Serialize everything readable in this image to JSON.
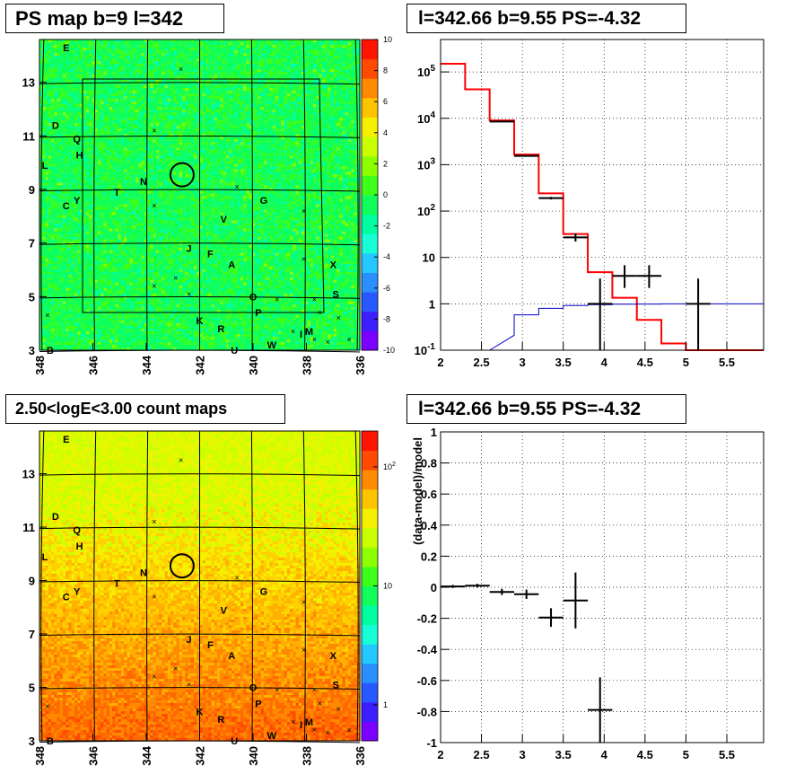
{
  "panels": {
    "top_left_title": "PS map b=9 l=342",
    "top_right_title": "l=342.66 b=9.55 PS=-4.32",
    "bottom_left_title": "2.50<logE<3.00 count maps",
    "bottom_right_title": "l=342.66 b=9.55 PS=-4.32"
  },
  "chart_data": [
    {
      "type": "heatmap",
      "panel": "top_left",
      "title": "PS map b=9 l=342",
      "x_ticks": [
        "348",
        "346",
        "344",
        "342",
        "340",
        "338",
        "336"
      ],
      "x_range": [
        348,
        336
      ],
      "y_ticks": [
        "3",
        "5",
        "7",
        "9",
        "11",
        "13"
      ],
      "y_range": [
        3,
        14.6
      ],
      "colorbar": {
        "ticks": [
          "10",
          "8",
          "6",
          "4",
          "2",
          "0",
          "-2",
          "-4",
          "-6",
          "-8",
          "-10"
        ],
        "range": [
          -10,
          10
        ],
        "colors": [
          "#7a00ff",
          "#3c1eff",
          "#2858ff",
          "#2a8fff",
          "#22c8ff",
          "#18ffd8",
          "#00ffa0",
          "#11ff5a",
          "#3eff19",
          "#8cff00",
          "#c9ff00",
          "#f4f000",
          "#ffc400",
          "#ff8a00",
          "#ff4a00",
          "#ff1400"
        ]
      },
      "dominant_value": 0.5,
      "sources": [
        {
          "label": "E",
          "l": 347.0,
          "b": 14.3
        },
        {
          "label": "D",
          "l": 347.4,
          "b": 11.4
        },
        {
          "label": "Q",
          "l": 346.6,
          "b": 10.9
        },
        {
          "label": "H",
          "l": 346.5,
          "b": 10.3
        },
        {
          "label": "L",
          "l": 347.8,
          "b": 9.9
        },
        {
          "label": "N",
          "l": 344.1,
          "b": 9.3
        },
        {
          "label": "T",
          "l": 345.1,
          "b": 8.9
        },
        {
          "label": "Y",
          "l": 346.6,
          "b": 8.6
        },
        {
          "label": "C",
          "l": 347.0,
          "b": 8.4
        },
        {
          "label": "G",
          "l": 339.6,
          "b": 8.6
        },
        {
          "label": "V",
          "l": 341.1,
          "b": 7.9
        },
        {
          "label": "J",
          "l": 342.4,
          "b": 6.8
        },
        {
          "label": "F",
          "l": 341.6,
          "b": 6.6
        },
        {
          "label": "A",
          "l": 340.8,
          "b": 6.2
        },
        {
          "label": "X",
          "l": 337.0,
          "b": 6.2
        },
        {
          "label": "O",
          "l": 340.0,
          "b": 5.0
        },
        {
          "label": "S",
          "l": 336.9,
          "b": 5.1
        },
        {
          "label": "P",
          "l": 339.8,
          "b": 4.4
        },
        {
          "label": "K",
          "l": 342.0,
          "b": 4.1
        },
        {
          "label": "R",
          "l": 341.2,
          "b": 3.8
        },
        {
          "label": "M",
          "l": 337.9,
          "b": 3.7
        },
        {
          "label": "I",
          "l": 338.2,
          "b": 3.6
        },
        {
          "label": "W",
          "l": 339.3,
          "b": 3.2
        },
        {
          "label": "U",
          "l": 340.7,
          "b": 3.0
        },
        {
          "label": "B",
          "l": 347.6,
          "b": 3.0
        }
      ],
      "crosses": [
        [
          342.7,
          13.5
        ],
        [
          343.7,
          11.2
        ],
        [
          340.6,
          9.1
        ],
        [
          343.7,
          8.4
        ],
        [
          338.1,
          8.2
        ],
        [
          338.1,
          6.4
        ],
        [
          342.9,
          5.7
        ],
        [
          343.7,
          5.4
        ],
        [
          342.4,
          5.1
        ],
        [
          339.1,
          4.9
        ],
        [
          337.7,
          4.9
        ],
        [
          337.5,
          4.4
        ],
        [
          336.8,
          4.2
        ],
        [
          338.5,
          3.7
        ],
        [
          337.7,
          3.4
        ],
        [
          337.2,
          3.3
        ],
        [
          336.4,
          3.4
        ],
        [
          347.7,
          4.3
        ]
      ],
      "circle": {
        "l": 342.66,
        "b": 9.55
      }
    },
    {
      "type": "line",
      "panel": "top_right",
      "title": "l=342.66 b=9.55 PS=-4.32",
      "x_ticks": [
        "2",
        "2.5",
        "3",
        "3.5",
        "4",
        "4.5",
        "5",
        "5.5"
      ],
      "xlim": [
        2.0,
        5.95
      ],
      "y_scale": "log",
      "y_ticks": [
        {
          "value": 0.1,
          "base": "10",
          "exp": "-1"
        },
        {
          "value": 1,
          "base": "1",
          "exp": ""
        },
        {
          "value": 10,
          "base": "10",
          "exp": ""
        },
        {
          "value": 100,
          "base": "10",
          "exp": "2"
        },
        {
          "value": 1000,
          "base": "10",
          "exp": "3"
        },
        {
          "value": 10000,
          "base": "10",
          "exp": "4"
        },
        {
          "value": 100000,
          "base": "10",
          "exp": "5"
        }
      ],
      "ylim": [
        0.1,
        500000
      ],
      "grid": true,
      "series": [
        {
          "color": "#ff0000",
          "kind": "step",
          "edges": [
            2.0,
            2.3,
            2.6,
            2.9,
            3.2,
            3.5,
            3.8,
            4.1,
            4.4,
            4.7,
            5.0,
            5.3,
            5.6,
            5.95
          ],
          "values": [
            150000,
            42000,
            9000,
            1650,
            240,
            32,
            4.8,
            1.35,
            0.45,
            0.14,
            0.1,
            0.1,
            0.1
          ]
        },
        {
          "color": "#0000cc",
          "kind": "step",
          "edges": [
            2.6,
            2.9,
            3.2,
            3.5,
            3.8,
            4.1,
            4.4,
            4.7,
            5.0,
            5.3,
            5.6,
            5.95
          ],
          "values": [
            0.21,
            0.58,
            0.8,
            0.92,
            0.96,
            0.98,
            0.99,
            1.0,
            1.0,
            1.0,
            1.0
          ]
        },
        {
          "color": "#000000",
          "kind": "points",
          "points": [
            {
              "x": 2.75,
              "y": 8500,
              "xerr": 0.15,
              "ylo": 8300,
              "yhi": 8700
            },
            {
              "x": 3.05,
              "y": 1550,
              "xerr": 0.15,
              "ylo": 1500,
              "yhi": 1600
            },
            {
              "x": 3.35,
              "y": 190,
              "xerr": 0.15,
              "ylo": 178,
              "yhi": 202
            },
            {
              "x": 3.65,
              "y": 27,
              "xerr": 0.15,
              "ylo": 22,
              "yhi": 33
            },
            {
              "x": 3.95,
              "y": 1.0,
              "xerr": 0.15,
              "ylo": 0.1,
              "yhi": 3.5
            },
            {
              "x": 4.25,
              "y": 4.0,
              "xerr": 0.15,
              "ylo": 2.2,
              "yhi": 6.8
            },
            {
              "x": 4.55,
              "y": 4.0,
              "xerr": 0.15,
              "ylo": 2.2,
              "yhi": 6.8
            },
            {
              "x": 5.15,
              "y": 1.0,
              "xerr": 0.15,
              "ylo": 0.1,
              "yhi": 3.5
            }
          ]
        }
      ]
    },
    {
      "type": "heatmap",
      "panel": "bottom_left",
      "title": "2.50<logE<3.00 count maps",
      "x_ticks": [
        "348",
        "346",
        "344",
        "342",
        "340",
        "338",
        "336"
      ],
      "x_range": [
        348,
        336
      ],
      "y_ticks": [
        "3",
        "5",
        "7",
        "9",
        "11",
        "13"
      ],
      "y_range": [
        3,
        14.6
      ],
      "colorbar": {
        "scale": "log",
        "range": [
          0.5,
          200
        ],
        "ticks": [
          {
            "value": 100,
            "base": "10",
            "exp": "2"
          },
          {
            "value": 10,
            "base": "10",
            "exp": ""
          },
          {
            "value": 1,
            "base": "1",
            "exp": ""
          }
        ],
        "colors": [
          "#7a00ff",
          "#3c1eff",
          "#2858ff",
          "#2a8fff",
          "#22c8ff",
          "#18ffd8",
          "#00ffa0",
          "#11ff5a",
          "#3eff19",
          "#8cff00",
          "#c9ff00",
          "#f4f000",
          "#ffc400",
          "#ff8a00",
          "#ff4a00",
          "#ff1400"
        ]
      },
      "gradient": {
        "top_value": 18,
        "bottom_value": 130
      },
      "sources_same_as": "top_left",
      "circle": {
        "l": 342.66,
        "b": 9.55
      }
    },
    {
      "type": "scatter",
      "panel": "bottom_right",
      "title": "l=342.66 b=9.55 PS=-4.32",
      "ylabel": "(data-model)/model",
      "x_ticks": [
        "2",
        "2.5",
        "3",
        "3.5",
        "4",
        "4.5",
        "5",
        "5.5"
      ],
      "xlim": [
        2.0,
        5.95
      ],
      "y_ticks": [
        "1",
        "0.8",
        "0.6",
        "0.4",
        "0.2",
        "0",
        "-0.2",
        "-0.4",
        "-0.6",
        "-0.8",
        "-1"
      ],
      "ylim": [
        -1,
        1
      ],
      "grid": true,
      "points": [
        {
          "x": 2.15,
          "y": 0.005,
          "xerr": 0.15,
          "yerr": 0.01
        },
        {
          "x": 2.45,
          "y": 0.01,
          "xerr": 0.15,
          "yerr": 0.012
        },
        {
          "x": 2.75,
          "y": -0.03,
          "xerr": 0.15,
          "yerr": 0.02
        },
        {
          "x": 3.05,
          "y": -0.045,
          "xerr": 0.15,
          "yerr": 0.03
        },
        {
          "x": 3.35,
          "y": -0.195,
          "xerr": 0.15,
          "yerr": 0.06
        },
        {
          "x": 3.65,
          "y": -0.085,
          "xerr": 0.15,
          "yerr": 0.18
        },
        {
          "x": 3.95,
          "y": -0.79,
          "xerr": 0.15,
          "yerr": 0.21
        }
      ]
    }
  ]
}
